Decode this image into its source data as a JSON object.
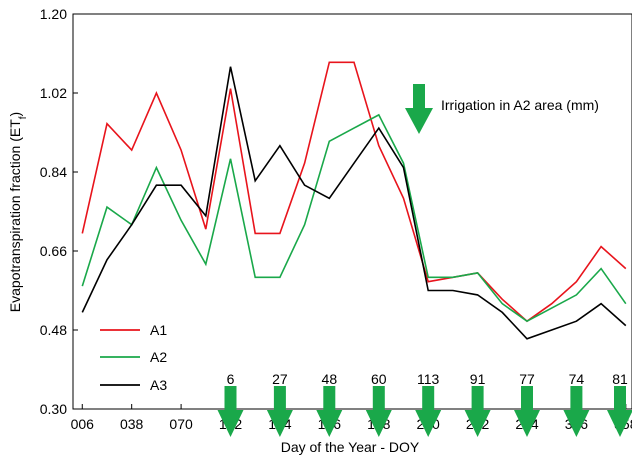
{
  "chart_data": {
    "type": "line",
    "xlabel": "Day of the Year - DOY",
    "ylabel_main": "Evapotranspiration fraction (ET",
    "ylabel_sub": "f",
    "ylabel_close": ")",
    "ylim": [
      0.3,
      1.2
    ],
    "xlim": [
      0,
      362
    ],
    "yticks": [
      "0.30",
      "0.48",
      "0.66",
      "0.84",
      "1.02",
      "1.20"
    ],
    "ytick_values": [
      0.3,
      0.48,
      0.66,
      0.84,
      1.02,
      1.2
    ],
    "xticks": [
      "006",
      "038",
      "070",
      "102",
      "134",
      "166",
      "198",
      "230",
      "262",
      "294",
      "326",
      "358"
    ],
    "xtick_values": [
      6,
      38,
      70,
      102,
      134,
      166,
      198,
      230,
      262,
      294,
      326,
      358
    ],
    "grid": false,
    "legend_position": "bottom-left",
    "series": [
      {
        "name": "A1",
        "color": "#e8141c",
        "x": [
          6,
          22,
          38,
          54,
          70,
          86,
          102,
          118,
          134,
          150,
          166,
          182,
          198,
          214,
          230,
          246,
          262,
          278,
          294,
          310,
          326,
          342,
          358
        ],
        "y": [
          0.7,
          0.95,
          0.89,
          1.02,
          0.89,
          0.71,
          1.03,
          0.7,
          0.7,
          0.86,
          1.09,
          1.09,
          0.9,
          0.78,
          0.59,
          0.6,
          0.61,
          0.55,
          0.5,
          0.54,
          0.59,
          0.67,
          0.62
        ]
      },
      {
        "name": "A2",
        "color": "#1aa84a",
        "x": [
          6,
          22,
          38,
          54,
          70,
          86,
          102,
          118,
          134,
          150,
          166,
          182,
          198,
          214,
          230,
          246,
          262,
          278,
          294,
          310,
          326,
          342,
          358
        ],
        "y": [
          0.58,
          0.76,
          0.72,
          0.85,
          0.73,
          0.63,
          0.87,
          0.6,
          0.6,
          0.72,
          0.91,
          0.94,
          0.97,
          0.86,
          0.6,
          0.6,
          0.61,
          0.54,
          0.5,
          0.53,
          0.56,
          0.62,
          0.54
        ]
      },
      {
        "name": "A3",
        "color": "#000000",
        "x": [
          6,
          22,
          38,
          54,
          70,
          86,
          102,
          118,
          134,
          150,
          166,
          182,
          198,
          214,
          230,
          246,
          262,
          278,
          294,
          310,
          326,
          342,
          358
        ],
        "y": [
          0.52,
          0.64,
          0.72,
          0.81,
          0.81,
          0.74,
          1.08,
          0.82,
          0.9,
          0.81,
          0.78,
          0.86,
          0.94,
          0.85,
          0.57,
          0.57,
          0.56,
          0.52,
          0.46,
          0.48,
          0.5,
          0.54,
          0.49
        ]
      }
    ],
    "irrigation": {
      "label": "Irrigation in A2 area (mm)",
      "color": "#1aa84a",
      "events": [
        {
          "x": 102,
          "amount": "6"
        },
        {
          "x": 134,
          "amount": "27"
        },
        {
          "x": 166,
          "amount": "48"
        },
        {
          "x": 198,
          "amount": "60"
        },
        {
          "x": 230,
          "amount": "113"
        },
        {
          "x": 262,
          "amount": "91"
        },
        {
          "x": 294,
          "amount": "77"
        },
        {
          "x": 326,
          "amount": "74"
        },
        {
          "x": 358,
          "amount": "81"
        }
      ]
    }
  }
}
